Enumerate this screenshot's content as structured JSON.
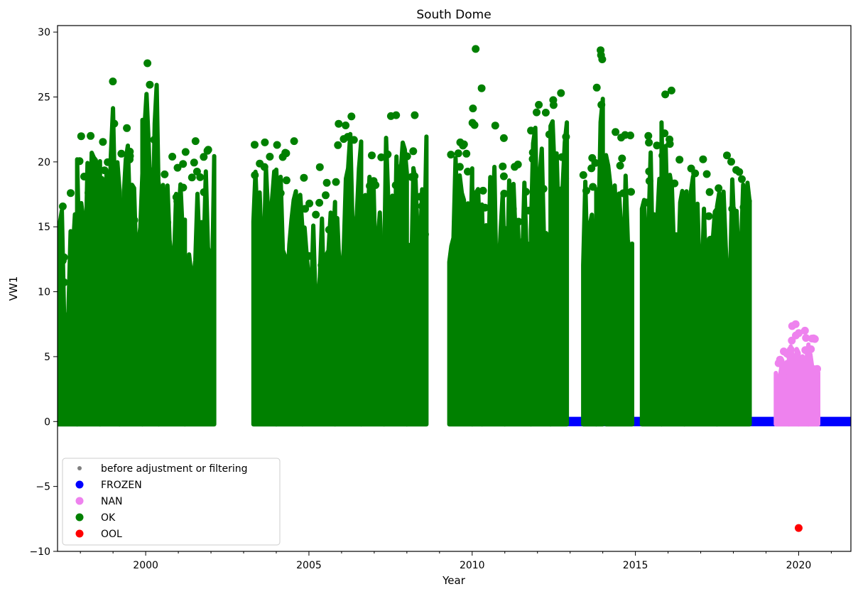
{
  "chart_data": {
    "type": "scatter",
    "title": "South Dome",
    "xlabel": "Year",
    "ylabel": "VW1",
    "xlim": [
      1997.3,
      2021.6
    ],
    "ylim": [
      -10,
      30.5
    ],
    "x_ticks": [
      2000,
      2005,
      2010,
      2015,
      2020
    ],
    "y_ticks": [
      -10,
      -5,
      0,
      5,
      10,
      15,
      20,
      25,
      30
    ],
    "grid": false,
    "legend_position": "lower-left",
    "legend": [
      {
        "label": "before adjustment or filtering",
        "color": "#808080",
        "marker": "small-dot"
      },
      {
        "label": "FROZEN",
        "color": "#0000ff",
        "marker": "dot"
      },
      {
        "label": "NAN",
        "color": "#ee82ee",
        "marker": "dot"
      },
      {
        "label": "OK",
        "color": "#008000",
        "marker": "dot"
      },
      {
        "label": "OOL",
        "color": "#ff0000",
        "marker": "dot"
      }
    ],
    "series": [
      {
        "name": "FROZEN",
        "color": "#0000ff",
        "style": "band",
        "segments": [
          {
            "x": [
              2010.6,
              2021.6
            ],
            "y": [
              -0.2,
              0.2
            ]
          }
        ]
      },
      {
        "name": "OK",
        "color": "#008000",
        "style": "dense-periods",
        "periods": [
          {
            "x": [
              1997.3,
              1997.9
            ],
            "y_max": 17.6
          },
          {
            "x": [
              1997.9,
              1998.6
            ],
            "y_max": 22.0
          },
          {
            "x": [
              1998.6,
              1999.2
            ],
            "y_max": 26.2
          },
          {
            "x": [
              1999.2,
              1999.9
            ],
            "y_max": 22.6
          },
          {
            "x": [
              1999.9,
              2000.4
            ],
            "y_max": 27.6
          },
          {
            "x": [
              2000.4,
              2001.2
            ],
            "y_max": 20.4
          },
          {
            "x": [
              2001.2,
              2002.1
            ],
            "y_max": 21.6
          },
          {
            "x": [
              2003.3,
              2004.0
            ],
            "y_max": 21.5
          },
          {
            "x": [
              2004.0,
              2004.8
            ],
            "y_max": 21.6
          },
          {
            "x": [
              2004.8,
              2005.8
            ],
            "y_max": 19.6
          },
          {
            "x": [
              2005.8,
              2006.6
            ],
            "y_max": 23.5
          },
          {
            "x": [
              2006.6,
              2007.3
            ],
            "y_max": 20.5
          },
          {
            "x": [
              2007.3,
              2008.0
            ],
            "y_max": 23.6
          },
          {
            "x": [
              2008.0,
              2008.6
            ],
            "y_max": 23.6
          },
          {
            "x": [
              2009.3,
              2010.0
            ],
            "y_max": 21.5
          },
          {
            "x": [
              2010.0,
              2010.3
            ],
            "y_max": 28.7
          },
          {
            "x": [
              2010.3,
              2011.0
            ],
            "y_max": 22.8
          },
          {
            "x": [
              2011.0,
              2011.8
            ],
            "y_max": 19.8
          },
          {
            "x": [
              2011.8,
              2012.4
            ],
            "y_max": 24.4
          },
          {
            "x": [
              2012.4,
              2012.9
            ],
            "y_max": 25.3
          },
          {
            "x": [
              2013.4,
              2013.8
            ],
            "y_max": 20.3
          },
          {
            "x": [
              2013.8,
              2014.0
            ],
            "y_max": 28.6
          },
          {
            "x": [
              2014.1,
              2014.9
            ],
            "y_max": 22.3
          },
          {
            "x": [
              2015.2,
              2015.8
            ],
            "y_max": 22.0
          },
          {
            "x": [
              2015.8,
              2016.5
            ],
            "y_max": 25.5
          },
          {
            "x": [
              2016.5,
              2017.5
            ],
            "y_max": 20.2
          },
          {
            "x": [
              2017.5,
              2018.5
            ],
            "y_max": 20.5
          }
        ]
      },
      {
        "name": "NAN",
        "color": "#ee82ee",
        "style": "dense-periods",
        "periods": [
          {
            "x": [
              2019.3,
              2019.7
            ],
            "y_max": 5.4
          },
          {
            "x": [
              2019.7,
              2020.0
            ],
            "y_max": 7.5
          },
          {
            "x": [
              2020.0,
              2020.3
            ],
            "y_max": 7.0
          },
          {
            "x": [
              2020.3,
              2020.6
            ],
            "y_max": 6.4
          }
        ]
      },
      {
        "name": "OOL",
        "color": "#ff0000",
        "style": "points",
        "points": [
          {
            "x": 2020.0,
            "y": -8.2
          }
        ]
      }
    ]
  }
}
